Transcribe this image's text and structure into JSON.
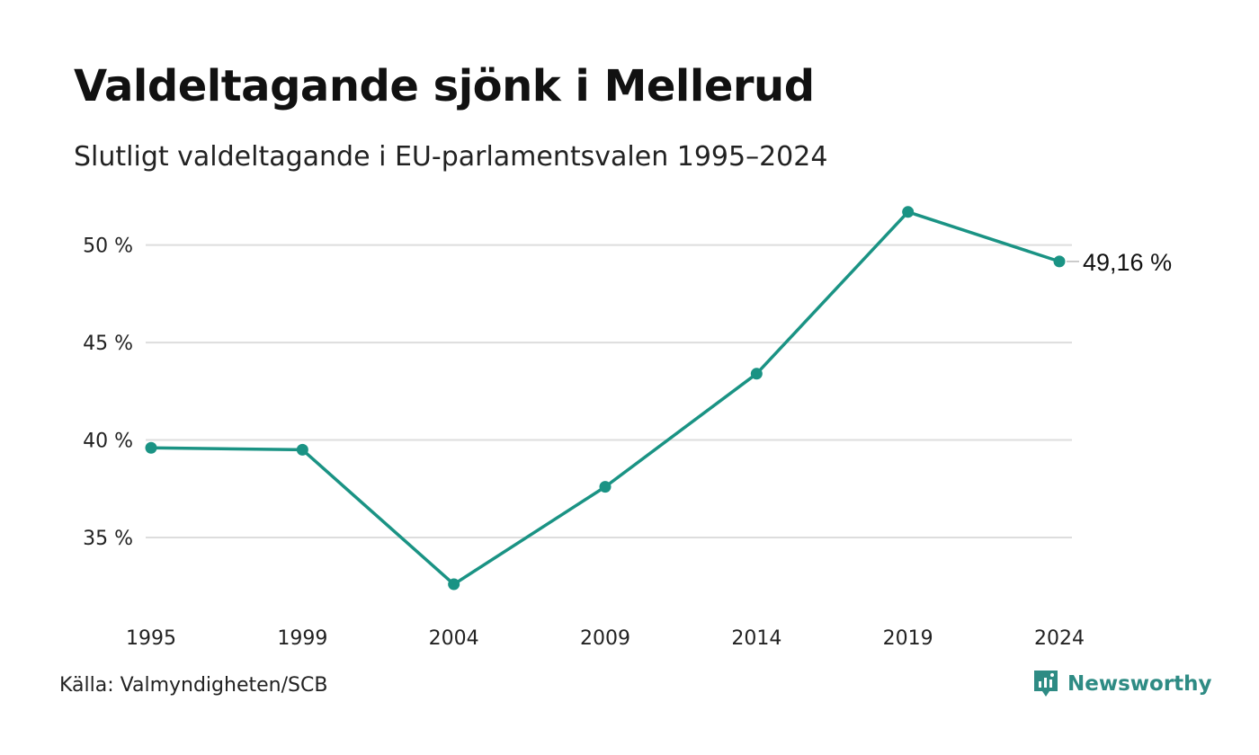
{
  "title": "Valdeltagande sjönk i Mellerud",
  "subtitle": "Slutligt valdeltagande i EU-parlamentsvalen 1995–2024",
  "source": "Källa: Valmyndigheten/SCB",
  "brand": {
    "name": "Newsworthy",
    "icon": "newsworthy-logo-icon",
    "color": "#2e8b84"
  },
  "chart_data": {
    "type": "line",
    "x": [
      "1995",
      "1999",
      "2004",
      "2009",
      "2014",
      "2019",
      "2024"
    ],
    "series": [
      {
        "values": [
          39.6,
          39.5,
          32.6,
          37.6,
          43.4,
          51.7,
          49.16
        ],
        "color": "#1a9384"
      }
    ],
    "yticks": [
      35,
      40,
      45,
      50
    ],
    "ytick_labels": [
      "35 %",
      "40 %",
      "45 %",
      "50 %"
    ],
    "ylim": [
      31.5,
      53
    ],
    "grid": true,
    "end_label": "49,16 %",
    "xlabel": "",
    "ylabel": ""
  }
}
